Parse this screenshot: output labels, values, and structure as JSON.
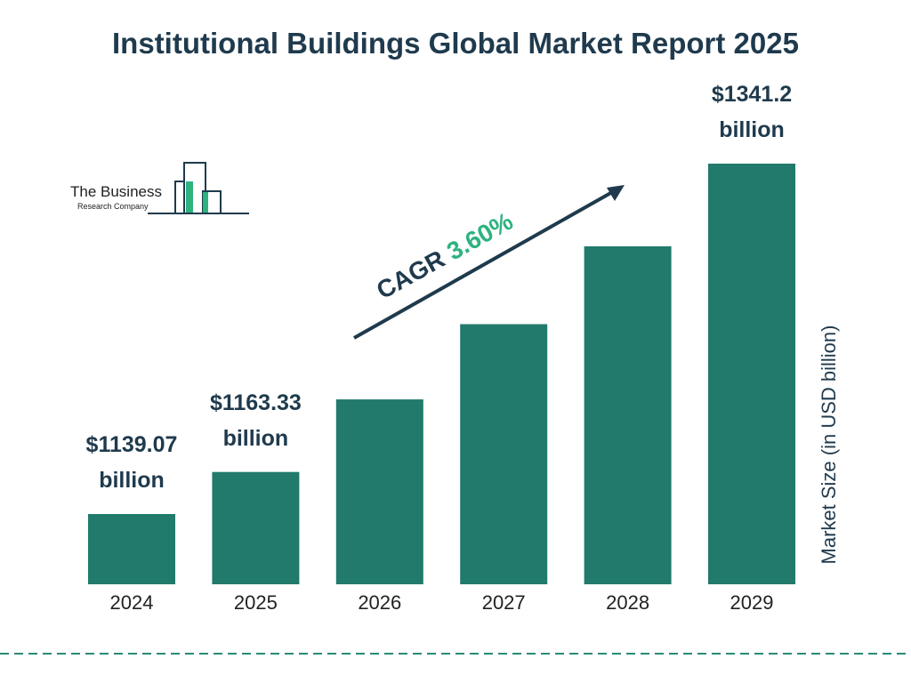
{
  "chart_data": {
    "type": "bar",
    "title": "Institutional Buildings Global Market Report 2025",
    "categories": [
      "2024",
      "2025",
      "2026",
      "2027",
      "2028",
      "2029"
    ],
    "values": [
      1139.07,
      1163.33,
      1205.2,
      1248.6,
      1293.5,
      1341.2
    ],
    "value_labels": [
      "$1139.07 billion",
      "$1163.33 billion",
      null,
      null,
      null,
      "$1341.2 billion"
    ],
    "color": "#217a6b",
    "y_label": "Market Size (in USD billion)",
    "annotation": {
      "label": "CAGR",
      "value": "3.60%"
    },
    "logo": {
      "line1": "The Business",
      "line2": "Research Company"
    }
  }
}
